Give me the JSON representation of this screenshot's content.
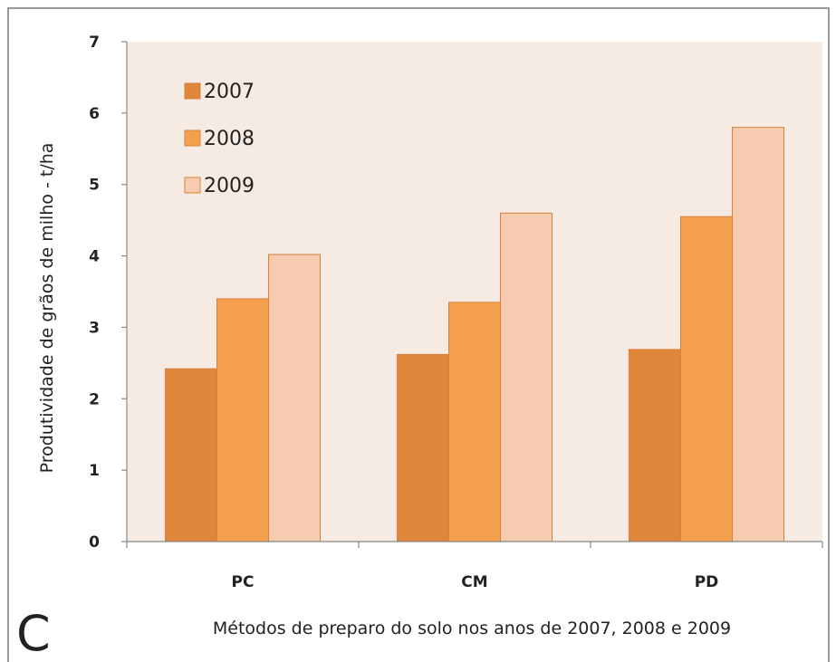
{
  "panel_letter": "C",
  "chart_data": {
    "type": "bar",
    "title": "",
    "xlabel": "Métodos de preparo do solo nos anos de 2007, 2008 e 2009",
    "ylabel": "Produtividade de grãos de milho - t/ha",
    "categories": [
      "PC",
      "CM",
      "PD"
    ],
    "ylim": [
      0,
      7
    ],
    "yticks": [
      "0",
      "1",
      "2",
      "3",
      "4",
      "5",
      "6",
      "7"
    ],
    "grid": false,
    "legend_position": "top-left",
    "plot_background": "#f5ebe3",
    "series": [
      {
        "name": "2007",
        "color": "#e0863a",
        "values": [
          2.42,
          2.62,
          2.69
        ]
      },
      {
        "name": "2008",
        "color": "#f5a04e",
        "values": [
          3.4,
          3.35,
          4.55
        ]
      },
      {
        "name": "2009",
        "color": "#f6cbb0",
        "values": [
          4.02,
          4.6,
          5.8
        ]
      }
    ]
  }
}
